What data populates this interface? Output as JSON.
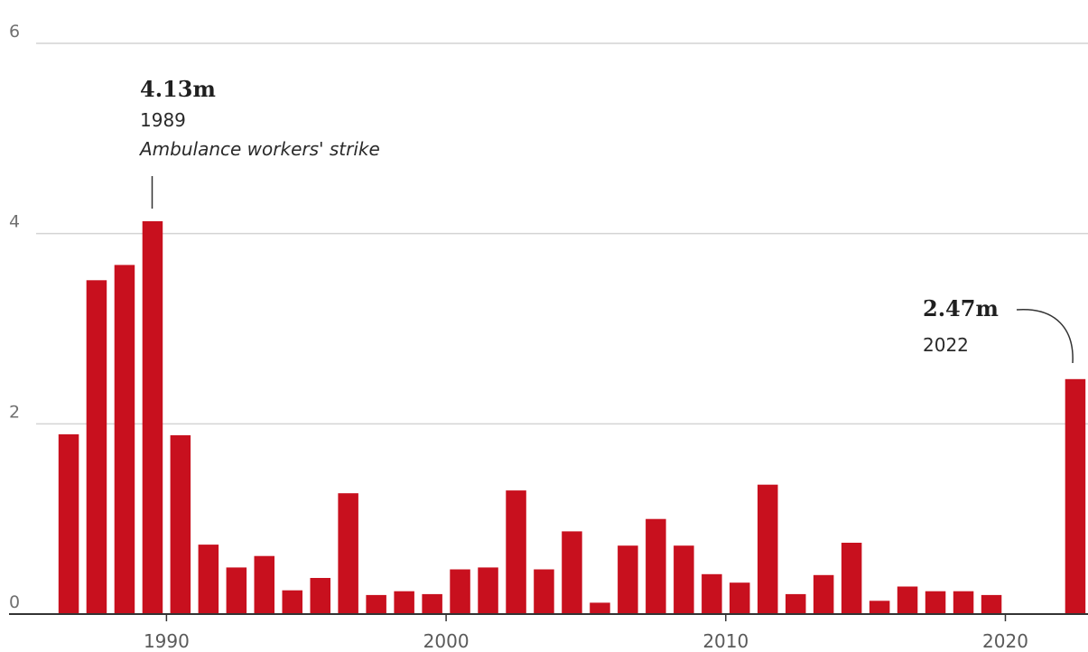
{
  "chart_data": {
    "type": "bar",
    "title": "",
    "xlabel": "",
    "ylabel": "",
    "ylim": [
      0,
      6
    ],
    "yticks": [
      "0",
      "2",
      "4",
      "6"
    ],
    "xticks": [
      "1990",
      "2000",
      "2010",
      "2020"
    ],
    "grid": true,
    "x": [
      1986,
      1987,
      1988,
      1989,
      1990,
      1991,
      1992,
      1993,
      1994,
      1995,
      1996,
      1997,
      1998,
      1999,
      2000,
      2001,
      2002,
      2003,
      2004,
      2005,
      2006,
      2007,
      2008,
      2009,
      2010,
      2011,
      2012,
      2013,
      2014,
      2015,
      2016,
      2017,
      2018,
      2019,
      2020,
      2021,
      2022
    ],
    "values": [
      1.89,
      3.51,
      3.67,
      4.13,
      1.88,
      0.73,
      0.49,
      0.61,
      0.25,
      0.38,
      1.27,
      0.2,
      0.24,
      0.21,
      0.47,
      0.49,
      1.3,
      0.47,
      0.87,
      0.12,
      0.72,
      1.0,
      0.72,
      0.42,
      0.33,
      1.36,
      0.21,
      0.41,
      0.75,
      0.14,
      0.29,
      0.24,
      0.24,
      0.2,
      0,
      0,
      2.47
    ],
    "colors": {
      "bar": "#c8101e",
      "grid": "#d4d4d4",
      "axis": "#333333"
    },
    "annotations": [
      {
        "value_label": "4.13m",
        "year_label": "1989",
        "note": "Ambulance workers' strike"
      },
      {
        "value_label": "2.47m",
        "year_label": "2022"
      }
    ]
  }
}
